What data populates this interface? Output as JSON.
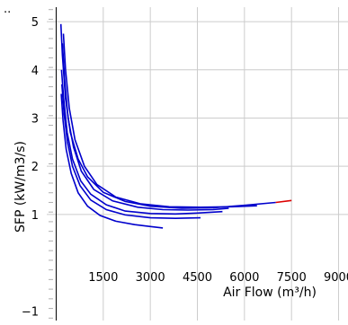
{
  "colors": {
    "series": "#0000cc",
    "highlight": "#dd0000",
    "grid": "#cccccc",
    "axis": "#000000",
    "minor_tick": "#b0b0b0"
  },
  "chart_data": {
    "type": "line",
    "xlabel": "Air Flow (m³/h)",
    "ylabel": "SFP (kW/m3/s)",
    "xlim": [
      -300,
      9300
    ],
    "ylim": [
      -1.2,
      5.3
    ],
    "x_ticks": [
      1500,
      3000,
      4500,
      6000,
      7500,
      9000
    ],
    "x_tick_labels": [
      "1500",
      "3000",
      "4500",
      "6000",
      "7500",
      "9000"
    ],
    "y_ticks": [
      1,
      2,
      3,
      4,
      5
    ],
    "y_tick_labels": [
      "1",
      "2",
      "3",
      "4",
      "5"
    ],
    "y_tick_labels_below": [
      {
        "value": -1,
        "label": "−1"
      }
    ],
    "grid": true,
    "corner_mark": "..",
    "series": [
      {
        "points": [
          [
            150,
            4.95
          ],
          [
            200,
            4.3
          ],
          [
            300,
            3.4
          ],
          [
            450,
            2.7
          ],
          [
            700,
            2.15
          ],
          [
            1000,
            1.78
          ],
          [
            1500,
            1.46
          ],
          [
            2200,
            1.27
          ],
          [
            3000,
            1.17
          ],
          [
            4000,
            1.13
          ],
          [
            5000,
            1.14
          ],
          [
            6000,
            1.19
          ],
          [
            7000,
            1.25
          ],
          [
            7500,
            1.29
          ]
        ],
        "highlight_from": 7000
      },
      {
        "points": [
          [
            230,
            4.75
          ],
          [
            300,
            4.0
          ],
          [
            420,
            3.2
          ],
          [
            600,
            2.55
          ],
          [
            900,
            2.0
          ],
          [
            1300,
            1.62
          ],
          [
            1900,
            1.36
          ],
          [
            2700,
            1.22
          ],
          [
            3600,
            1.16
          ],
          [
            4600,
            1.15
          ],
          [
            5600,
            1.16
          ],
          [
            6400,
            1.18
          ]
        ],
        "highlight_from": 5700
      },
      {
        "points": [
          [
            200,
            4.55
          ],
          [
            270,
            3.8
          ],
          [
            380,
            3.0
          ],
          [
            550,
            2.4
          ],
          [
            800,
            1.9
          ],
          [
            1200,
            1.52
          ],
          [
            1800,
            1.28
          ],
          [
            2600,
            1.15
          ],
          [
            3400,
            1.1
          ],
          [
            4200,
            1.09
          ],
          [
            5000,
            1.1
          ],
          [
            5500,
            1.13
          ]
        ]
      },
      {
        "points": [
          [
            170,
            4.0
          ],
          [
            240,
            3.4
          ],
          [
            350,
            2.7
          ],
          [
            520,
            2.15
          ],
          [
            780,
            1.7
          ],
          [
            1100,
            1.42
          ],
          [
            1600,
            1.2
          ],
          [
            2200,
            1.07
          ],
          [
            3000,
            1.02
          ],
          [
            3800,
            1.01
          ],
          [
            4500,
            1.03
          ],
          [
            5300,
            1.06
          ]
        ]
      },
      {
        "points": [
          [
            180,
            3.7
          ],
          [
            250,
            3.1
          ],
          [
            360,
            2.5
          ],
          [
            520,
            2.0
          ],
          [
            760,
            1.6
          ],
          [
            1100,
            1.3
          ],
          [
            1600,
            1.1
          ],
          [
            2200,
            0.99
          ],
          [
            3000,
            0.93
          ],
          [
            3800,
            0.92
          ],
          [
            4600,
            0.93
          ]
        ]
      },
      {
        "points": [
          [
            160,
            3.5
          ],
          [
            220,
            2.95
          ],
          [
            320,
            2.35
          ],
          [
            480,
            1.85
          ],
          [
            700,
            1.45
          ],
          [
            1000,
            1.17
          ],
          [
            1400,
            0.98
          ],
          [
            1900,
            0.86
          ],
          [
            2500,
            0.79
          ],
          [
            3000,
            0.75
          ],
          [
            3400,
            0.72
          ]
        ]
      }
    ]
  }
}
